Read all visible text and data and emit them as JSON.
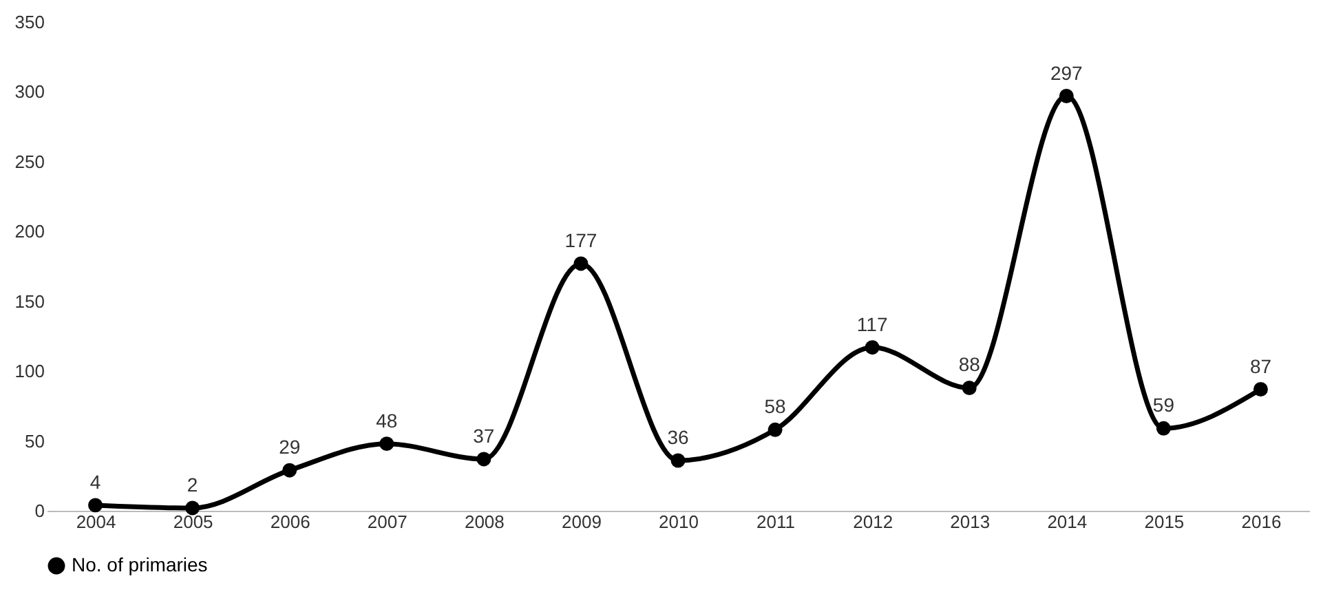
{
  "chart_data": {
    "type": "line",
    "categories": [
      "2004",
      "2005",
      "2006",
      "2007",
      "2008",
      "2009",
      "2010",
      "2011",
      "2012",
      "2013",
      "2014",
      "2015",
      "2016"
    ],
    "series": [
      {
        "name": "No. of primaries",
        "color": "#000000",
        "values": [
          4,
          2,
          29,
          48,
          37,
          177,
          36,
          58,
          117,
          88,
          297,
          59,
          87
        ]
      }
    ],
    "ylim": [
      0,
      350
    ],
    "yticks": [
      0,
      50,
      100,
      150,
      200,
      250,
      300,
      350
    ],
    "grid": false,
    "legend": "bottom",
    "marker": "circle",
    "line_style": "solid",
    "data_labels": true
  }
}
